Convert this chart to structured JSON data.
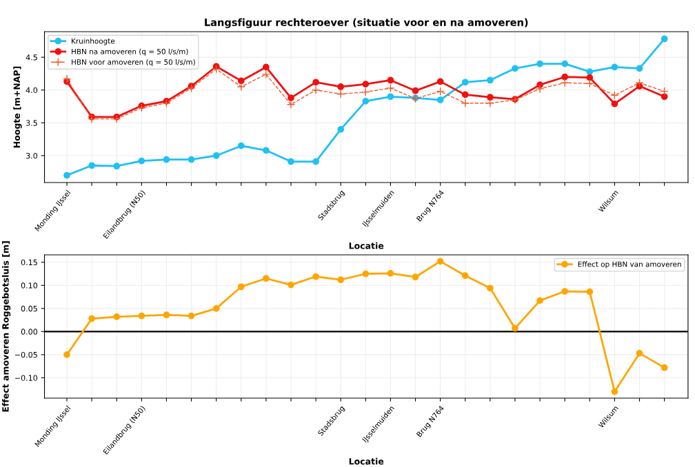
{
  "chart_data": [
    {
      "type": "line",
      "title": "Langsfiguur rechteroever (situatie voor en na amoveren)",
      "xlabel": "Locatie",
      "ylabel": "Hoogte [m+NAP]",
      "categories": [
        "Monding IJssel",
        null,
        null,
        "Eilandbrug (N50)",
        null,
        null,
        null,
        null,
        null,
        null,
        null,
        "Stadsbrug",
        null,
        "IJsselmuiden",
        null,
        "Brug N764",
        null,
        null,
        null,
        null,
        null,
        null,
        "Wilsum",
        null,
        null
      ],
      "ylim": [
        2.59,
        4.89
      ],
      "yticks": [
        {
          "value": 3,
          "label": "3.0"
        },
        3.5,
        {
          "value": 4,
          "label": "4.0"
        },
        4.5
      ],
      "grid": true,
      "legend": "top left",
      "series": [
        {
          "name": "Kruinhoogte",
          "color": "#1ec0f5",
          "marker": "circle",
          "line_style": "solid",
          "values": [
            2.7,
            2.85,
            2.84,
            2.92,
            2.94,
            2.94,
            3.0,
            3.15,
            3.08,
            2.91,
            2.91,
            3.4,
            3.83,
            3.9,
            3.88,
            3.85,
            4.12,
            4.15,
            4.33,
            4.4,
            4.4,
            4.28,
            4.35,
            4.33,
            4.78
          ]
        },
        {
          "name": "HBN na amoveren (q = 50 l/s/m)",
          "color": "#f01010",
          "marker": "circle",
          "line_style": "solid",
          "values": [
            4.13,
            3.59,
            3.59,
            3.76,
            3.83,
            4.06,
            4.36,
            4.14,
            4.35,
            3.88,
            4.12,
            4.05,
            4.09,
            4.15,
            3.99,
            4.13,
            3.93,
            3.89,
            3.86,
            4.08,
            4.2,
            4.19,
            3.79,
            4.06,
            3.9
          ]
        },
        {
          "name": "HBN voor amoveren (q = 50 l/s/m)",
          "color": "#f05a28",
          "marker": "cross",
          "line_style": "dashed",
          "values": [
            4.17,
            3.56,
            3.56,
            3.73,
            3.8,
            4.03,
            4.32,
            4.05,
            4.24,
            3.78,
            4.0,
            3.94,
            3.97,
            4.03,
            3.87,
            3.98,
            3.8,
            3.8,
            3.85,
            4.02,
            4.11,
            4.1,
            3.92,
            4.11,
            3.98
          ]
        }
      ]
    },
    {
      "type": "line",
      "xlabel": "Locatie",
      "ylabel": "Effect amoveren Roggebotsluis [m]",
      "categories": [
        "Monding IJssel",
        null,
        null,
        "Eilandbrug (N50)",
        null,
        null,
        null,
        null,
        null,
        null,
        null,
        "Stadsbrug",
        null,
        "IJsselmuiden",
        null,
        "Brug N764",
        null,
        null,
        null,
        null,
        null,
        null,
        "Wilsum",
        null,
        null
      ],
      "ylim": [
        -0.144,
        0.166
      ],
      "yticks": [
        {
          "value": -0.1,
          "label": "−0.10"
        },
        -0.05,
        {
          "value": 0,
          "label": "0.00"
        },
        0.05,
        {
          "value": 0.1,
          "label": "0.10"
        },
        0.15
      ],
      "grid": true,
      "legend": "top right",
      "ref_lines": [
        {
          "axis": "y",
          "value": 0,
          "color": "#000000",
          "line_style": "solid"
        }
      ],
      "series": [
        {
          "name": "Effect op HBN van amoveren",
          "color": "#ffa500",
          "marker": "circle",
          "line_style": "solid",
          "values": [
            -0.05,
            0.028,
            0.032,
            0.034,
            0.036,
            0.034,
            0.05,
            0.097,
            0.115,
            0.101,
            0.119,
            0.112,
            0.125,
            0.126,
            0.118,
            0.152,
            0.121,
            0.094,
            0.007,
            0.067,
            0.087,
            0.086,
            -0.13,
            -0.047,
            -0.078
          ]
        }
      ]
    }
  ]
}
